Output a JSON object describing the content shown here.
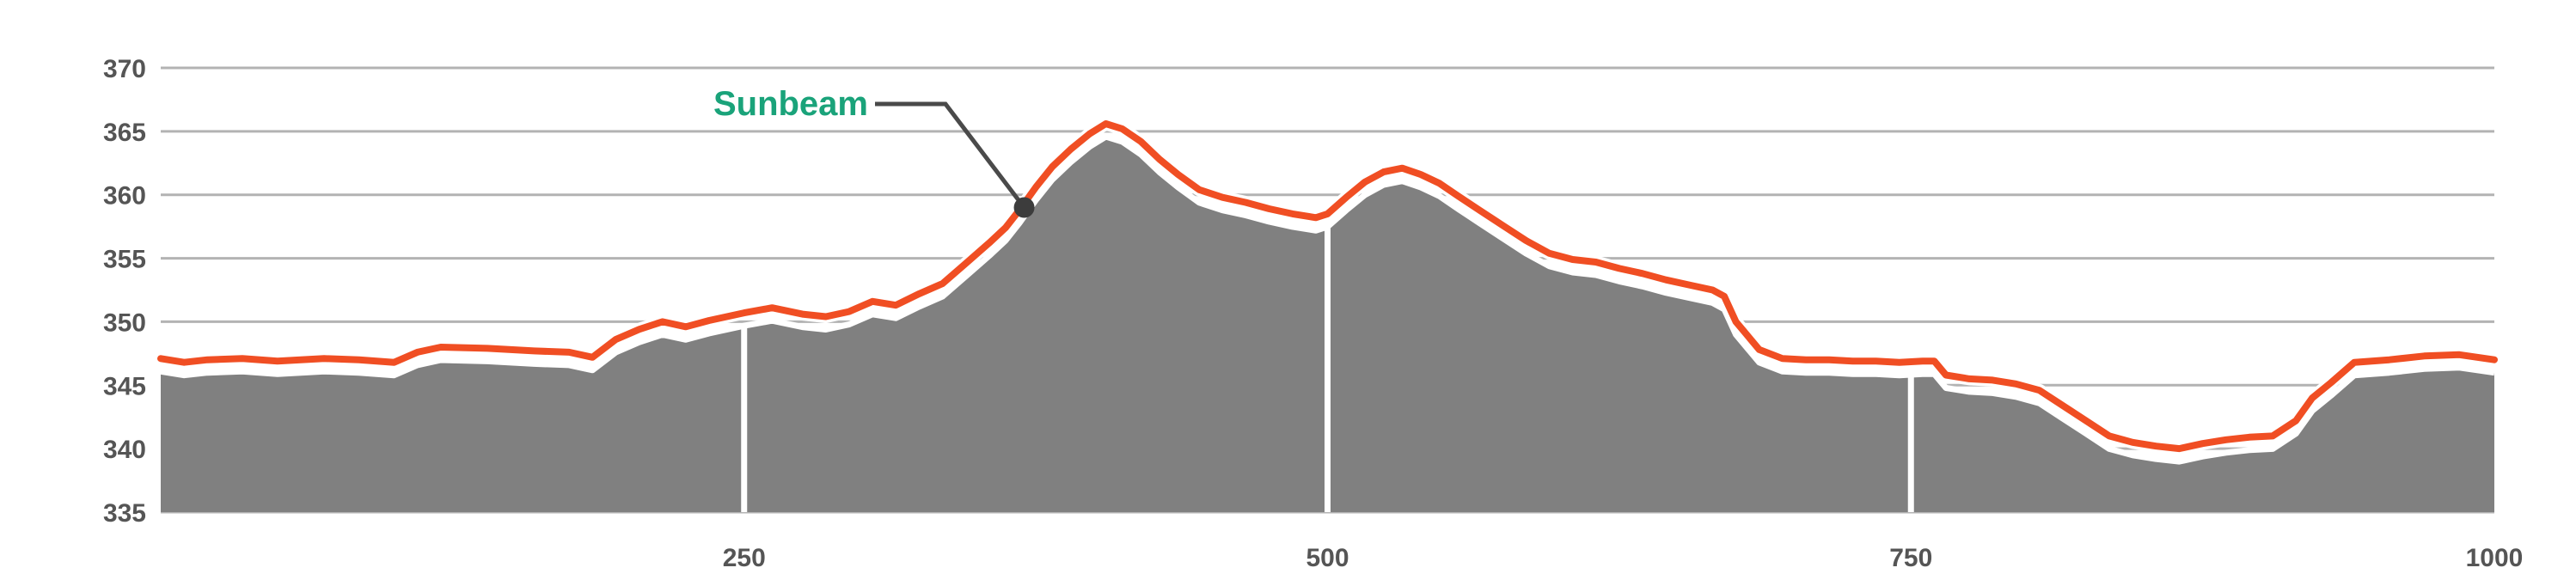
{
  "chart_data": {
    "type": "area",
    "title": "",
    "xlabel": "",
    "ylabel": "",
    "xlim": [
      0,
      1000
    ],
    "ylim": [
      335,
      370
    ],
    "x_ticks": [
      250,
      500,
      750,
      1000
    ],
    "x_tick_labels": [
      "250",
      "500",
      "750",
      "1000"
    ],
    "y_ticks": [
      335,
      340,
      345,
      350,
      355,
      360,
      365,
      370
    ],
    "y_tick_labels": [
      "335",
      "340",
      "345",
      "350",
      "355",
      "360",
      "365",
      "370"
    ],
    "grid": "horizontal",
    "markers_x": [
      250,
      500,
      750
    ],
    "series": [
      {
        "x": [
          0,
          10,
          20,
          35,
          50,
          60,
          70,
          85,
          100,
          110,
          120,
          140,
          160,
          175,
          185,
          195,
          205,
          215,
          225,
          235,
          250,
          262,
          275,
          285,
          295,
          305,
          315,
          325,
          335,
          345,
          355,
          362,
          368,
          375,
          382,
          390,
          398,
          405,
          412,
          420,
          428,
          436,
          445,
          455,
          465,
          475,
          485,
          495,
          500,
          508,
          516,
          524,
          532,
          540,
          548,
          556,
          565,
          575,
          585,
          595,
          605,
          615,
          625,
          635,
          645,
          655,
          665,
          670,
          675,
          685,
          695,
          705,
          715,
          725,
          735,
          745,
          755,
          760,
          765,
          775,
          785,
          795,
          805,
          815,
          825,
          835,
          845,
          855,
          865,
          875,
          885,
          895,
          905,
          915,
          922,
          930,
          940,
          955,
          970,
          985,
          1000
        ],
        "y": [
          347.1,
          346.8,
          347.0,
          347.1,
          346.9,
          347.0,
          347.1,
          347.0,
          346.8,
          347.6,
          348.0,
          347.9,
          347.7,
          347.6,
          347.2,
          348.6,
          349.4,
          350.0,
          349.6,
          350.1,
          350.7,
          351.1,
          350.6,
          350.4,
          350.8,
          351.6,
          351.3,
          352.2,
          353.0,
          354.6,
          356.2,
          357.4,
          358.8,
          360.6,
          362.2,
          363.6,
          364.8,
          365.6,
          365.2,
          364.2,
          362.8,
          361.6,
          360.4,
          359.8,
          359.4,
          358.9,
          358.5,
          358.2,
          358.5,
          359.8,
          361.0,
          361.8,
          362.1,
          361.6,
          360.9,
          359.9,
          358.8,
          357.6,
          356.4,
          355.4,
          354.9,
          354.7,
          354.2,
          353.8,
          353.3,
          352.9,
          352.5,
          352.0,
          350.0,
          347.8,
          347.1,
          347.0,
          347.0,
          346.9,
          346.9,
          346.8,
          346.9,
          346.9,
          345.8,
          345.5,
          345.4,
          345.1,
          344.6,
          343.4,
          342.2,
          341.0,
          340.5,
          340.2,
          340.0,
          340.4,
          340.7,
          340.9,
          341.0,
          342.2,
          344.0,
          345.2,
          346.8,
          347.0,
          347.3,
          347.4,
          347.0
        ]
      }
    ],
    "annotations": [
      {
        "text": "Sunbeam",
        "x": 370,
        "y": 359.0
      }
    ],
    "colors": {
      "line": "#f04e23",
      "fill": "#808080",
      "outline": "#ffffff",
      "grid": "#b3b3b3",
      "marker": "#ffffff",
      "tick_text": "#555555",
      "callout_text": "#1aa37a",
      "callout_line": "#4a4a4a",
      "callout_dot": "#3c3c3c"
    }
  }
}
